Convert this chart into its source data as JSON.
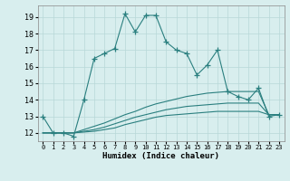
{
  "xlabel": "Humidex (Indice chaleur)",
  "x": [
    0,
    1,
    2,
    3,
    4,
    5,
    6,
    7,
    8,
    9,
    10,
    11,
    12,
    13,
    14,
    15,
    16,
    17,
    18,
    19,
    20,
    21,
    22,
    23
  ],
  "main_y": [
    13,
    12,
    12,
    11.8,
    14,
    16.5,
    16.8,
    17.1,
    19.2,
    18.1,
    19.1,
    19.1,
    17.5,
    17.0,
    16.8,
    15.5,
    16.1,
    17.0,
    14.5,
    14.2,
    14.0,
    14.7,
    13.0,
    13.1
  ],
  "line2_y": [
    12.0,
    12.0,
    12.0,
    12.0,
    12.2,
    12.4,
    12.6,
    12.85,
    13.1,
    13.3,
    13.55,
    13.75,
    13.9,
    14.05,
    14.2,
    14.3,
    14.4,
    14.45,
    14.5,
    14.5,
    14.5,
    14.5,
    13.1,
    13.1
  ],
  "line3_y": [
    12.0,
    12.0,
    12.0,
    12.0,
    12.1,
    12.2,
    12.35,
    12.55,
    12.75,
    12.95,
    13.1,
    13.25,
    13.4,
    13.5,
    13.6,
    13.65,
    13.7,
    13.75,
    13.8,
    13.8,
    13.8,
    13.8,
    13.1,
    13.1
  ],
  "line4_y": [
    12.0,
    12.0,
    12.0,
    12.0,
    12.05,
    12.1,
    12.2,
    12.3,
    12.5,
    12.65,
    12.8,
    12.95,
    13.05,
    13.1,
    13.15,
    13.2,
    13.25,
    13.3,
    13.3,
    13.3,
    13.3,
    13.3,
    13.1,
    13.1
  ],
  "line_color": "#2a7f7f",
  "bg_color": "#d8eeee",
  "grid_color": "#b8d8d8",
  "ylim": [
    11.5,
    19.7
  ],
  "xlim": [
    -0.5,
    23.5
  ],
  "yticks": [
    12,
    13,
    14,
    15,
    16,
    17,
    18,
    19
  ],
  "xticks": [
    0,
    1,
    2,
    3,
    4,
    5,
    6,
    7,
    8,
    9,
    10,
    11,
    12,
    13,
    14,
    15,
    16,
    17,
    18,
    19,
    20,
    21,
    22,
    23
  ]
}
